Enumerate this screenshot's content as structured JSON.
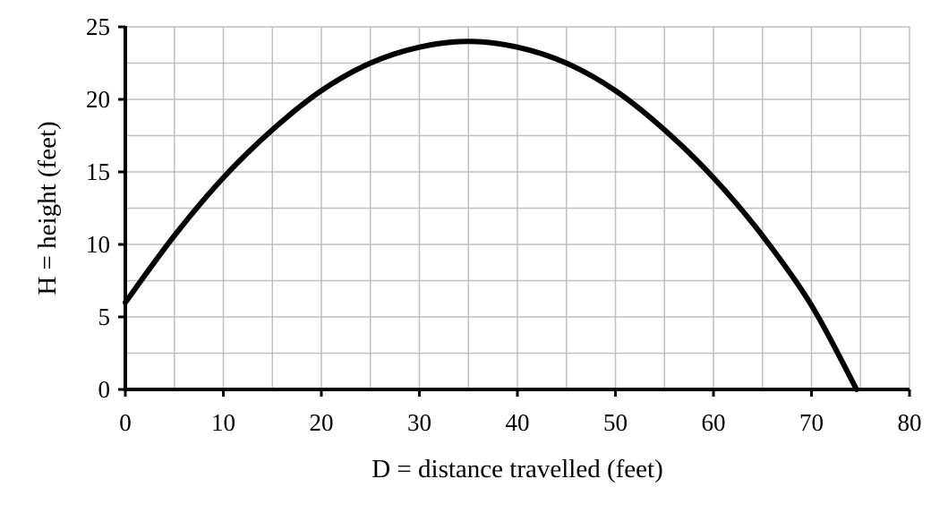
{
  "chart_data": {
    "type": "line",
    "title": "",
    "xlabel": "D = distance travelled (feet)",
    "ylabel": "H = height (feet)",
    "xlim": [
      0,
      80
    ],
    "ylim": [
      0,
      25
    ],
    "x_ticks": [
      0,
      10,
      20,
      30,
      40,
      50,
      60,
      70,
      80
    ],
    "y_ticks": [
      0,
      5,
      10,
      15,
      20,
      25
    ],
    "x_tick_labels": [
      "0",
      "10",
      "20",
      "30",
      "40",
      "50",
      "60",
      "70",
      "80"
    ],
    "y_tick_labels": [
      "0",
      "5",
      "10",
      "15",
      "20",
      "25"
    ],
    "grid": true,
    "grid_x_step": 5,
    "grid_y_step": 2.5,
    "legend": "none",
    "colors": {
      "line": "#000000",
      "grid": "#bfbfbf",
      "axis": "#000000"
    },
    "series": [
      {
        "points": [
          [
            0,
            6
          ],
          [
            5,
            10.6
          ],
          [
            10,
            14.6
          ],
          [
            15,
            17.9
          ],
          [
            20,
            20.6
          ],
          [
            25,
            22.5
          ],
          [
            30,
            23.6
          ],
          [
            35,
            24
          ],
          [
            40,
            23.6
          ],
          [
            45,
            22.5
          ],
          [
            50,
            20.6
          ],
          [
            55,
            17.9
          ],
          [
            60,
            14.6
          ],
          [
            65,
            10.6
          ],
          [
            70,
            5.8
          ],
          [
            74.6,
            0
          ]
        ]
      }
    ]
  }
}
